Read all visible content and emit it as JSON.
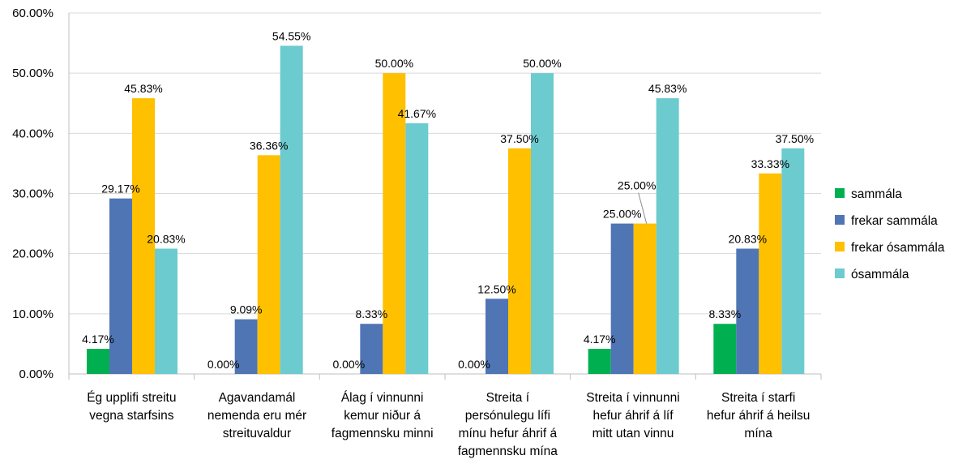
{
  "chart_data": {
    "type": "bar",
    "categories": [
      [
        "Ég upplifi streitu",
        "vegna starfsins"
      ],
      [
        "Agavandamál",
        "nemenda eru mér",
        "streituvaldur"
      ],
      [
        "Álag í vinnunni",
        "kemur niður á",
        "fagmennsku minni"
      ],
      [
        "Streita í",
        "persónulegu lífi",
        "mínu hefur áhrif á",
        "fagmennsku mína"
      ],
      [
        "Streita í vinnunni",
        "hefur áhrif á líf",
        "mitt utan vinnu"
      ],
      [
        "Streita í starfi",
        "hefur áhrif á heilsu",
        "mína"
      ]
    ],
    "series": [
      {
        "name": "sammála",
        "color": "#00B050",
        "values": [
          4.17,
          0.0,
          0.0,
          0.0,
          4.17,
          8.33
        ],
        "labels": [
          "4.17%",
          "0.00%",
          "0.00%",
          "0.00%",
          "4.17%",
          "8.33%"
        ]
      },
      {
        "name": "frekar sammála",
        "color": "#4F75B5",
        "values": [
          29.17,
          9.09,
          8.33,
          12.5,
          25.0,
          20.83
        ],
        "labels": [
          "29.17%",
          "9.09%",
          "8.33%",
          "12.50%",
          "25.00%",
          "20.83%"
        ]
      },
      {
        "name": "frekar ósammála",
        "color": "#FFC000",
        "values": [
          45.83,
          36.36,
          50.0,
          37.5,
          25.0,
          33.33
        ],
        "labels": [
          "45.83%",
          "36.36%",
          "50.00%",
          "37.50%",
          "25.00%",
          "33.33%"
        ]
      },
      {
        "name": "ósammála",
        "color": "#6CCBCF",
        "values": [
          20.83,
          54.55,
          41.67,
          50.0,
          45.83,
          37.5
        ],
        "labels": [
          "20.83%",
          "54.55%",
          "41.67%",
          "50.00%",
          "45.83%",
          "37.50%"
        ]
      }
    ],
    "y_ticks": [
      "0.00%",
      "10.00%",
      "20.00%",
      "30.00%",
      "40.00%",
      "50.00%",
      "60.00%"
    ],
    "ylim": [
      0,
      60
    ],
    "grid": true,
    "legend_position": "right"
  }
}
